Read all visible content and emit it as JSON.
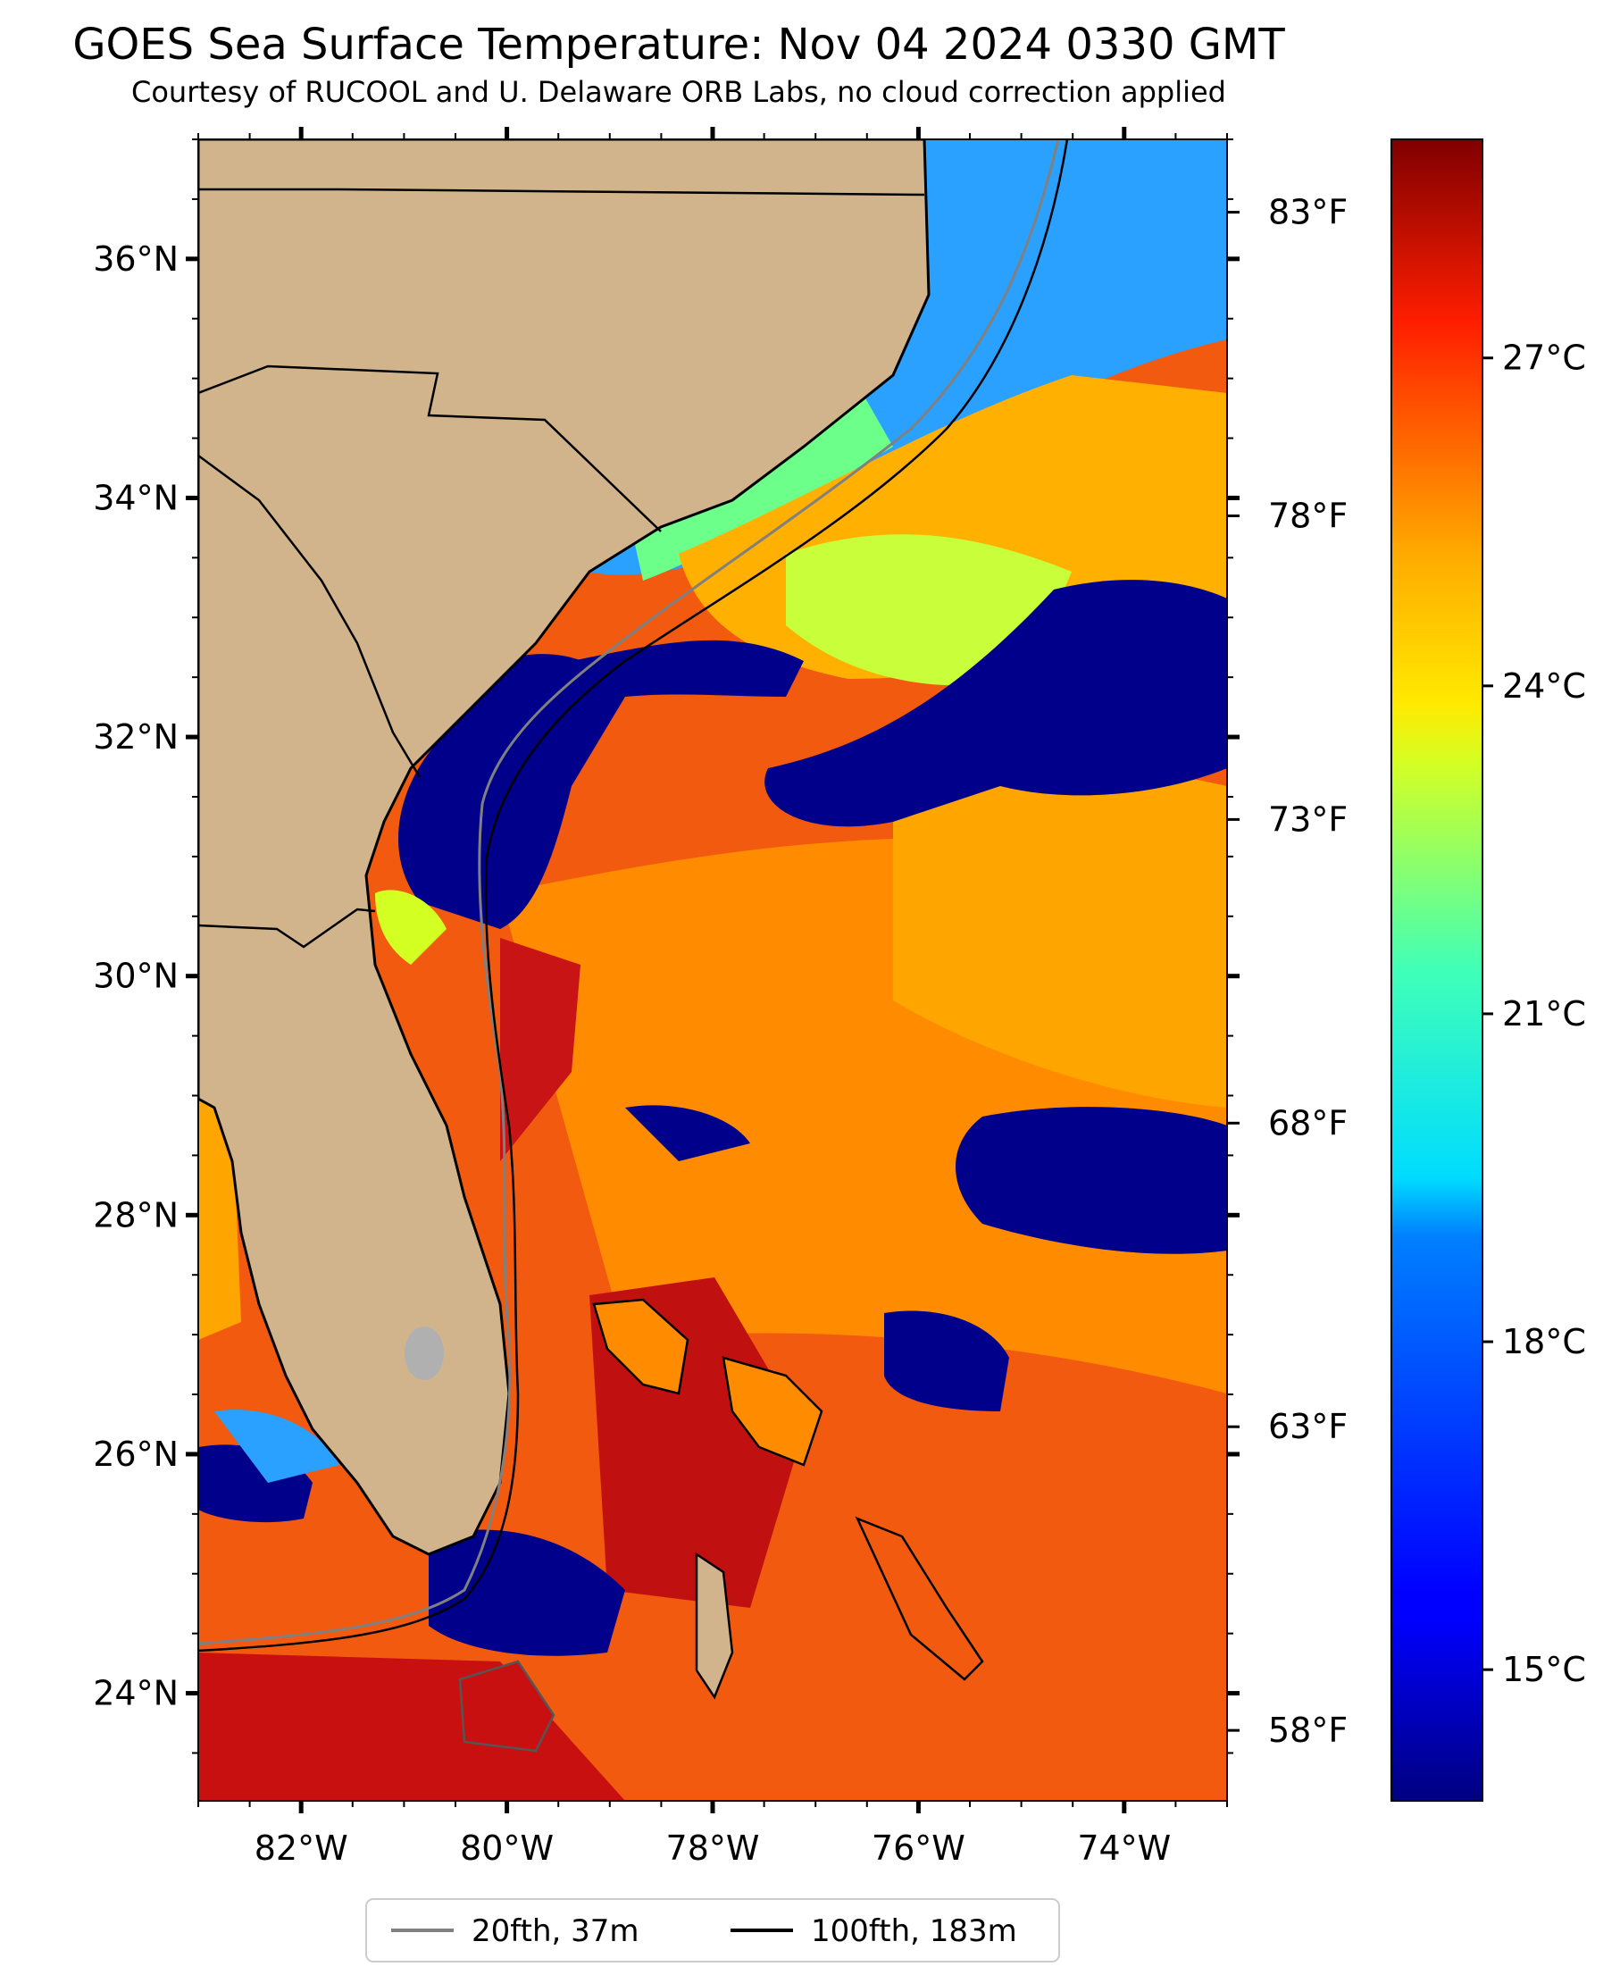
{
  "title": "GOES Sea Surface Temperature: Nov 04 2024 0330 GMT",
  "subtitle": "Courtesy of RUCOOL and U. Delaware ORB Labs, no cloud correction applied",
  "map": {
    "lon_range": [
      -83,
      -73
    ],
    "lat_range": [
      23.1,
      37.0
    ],
    "lon_ticks": [
      {
        "value": -82,
        "label": "82°W"
      },
      {
        "value": -80,
        "label": "80°W"
      },
      {
        "value": -78,
        "label": "78°W"
      },
      {
        "value": -76,
        "label": "76°W"
      },
      {
        "value": -74,
        "label": "74°W"
      }
    ],
    "lat_ticks": [
      {
        "value": 24,
        "label": "24°N"
      },
      {
        "value": 26,
        "label": "26°N"
      },
      {
        "value": 28,
        "label": "28°N"
      },
      {
        "value": 30,
        "label": "30°N"
      },
      {
        "value": 32,
        "label": "32°N"
      },
      {
        "value": 34,
        "label": "34°N"
      },
      {
        "value": 36,
        "label": "36°N"
      }
    ],
    "right_temp_ticks": [
      {
        "value": 83,
        "label": "83°F"
      },
      {
        "value": 78,
        "label": "78°F"
      },
      {
        "value": 73,
        "label": "73°F"
      },
      {
        "value": 68,
        "label": "68°F"
      },
      {
        "value": 63,
        "label": "63°F"
      },
      {
        "value": 58,
        "label": "58°F"
      }
    ],
    "colors": {
      "land": "#d2b48c",
      "ocean_warm": "#f25a10",
      "ocean_cold": "#00008b"
    }
  },
  "colorbar": {
    "range_c": [
      13.8,
      29.0
    ],
    "ticks": [
      {
        "value": 15,
        "label": "15°C"
      },
      {
        "value": 18,
        "label": "18°C"
      },
      {
        "value": 21,
        "label": "21°C"
      },
      {
        "value": 24,
        "label": "24°C"
      },
      {
        "value": 27,
        "label": "27°C"
      }
    ],
    "colormap": "jet"
  },
  "legend": {
    "items": [
      {
        "label": "20fth, 37m",
        "color": "#808080"
      },
      {
        "label": "100fth, 183m",
        "color": "#000000"
      }
    ]
  }
}
